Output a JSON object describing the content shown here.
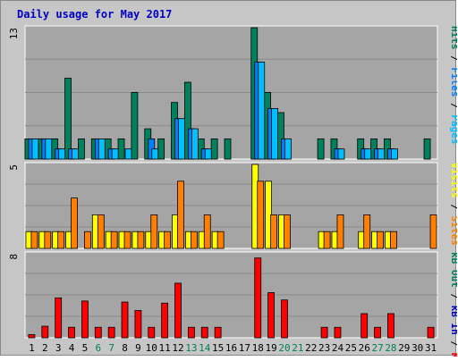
{
  "colors": {
    "background": "#c6c6c6",
    "plot": "#a5a5a5",
    "hits": "#00805c",
    "files": "#0080ff",
    "pages": "#00c0ff",
    "visits": "#ffff00",
    "sites": "#ff8000",
    "kbytes": "#ff0000",
    "title": "#0000c0",
    "weekend": "#00805c"
  },
  "chart_data": {
    "type": "bar",
    "title": "Daily usage for May 2017",
    "x": [
      "1",
      "2",
      "3",
      "4",
      "5",
      "6",
      "7",
      "8",
      "9",
      "10",
      "11",
      "12",
      "13",
      "14",
      "15",
      "16",
      "17",
      "18",
      "19",
      "20",
      "21",
      "22",
      "23",
      "24",
      "25",
      "26",
      "27",
      "28",
      "29",
      "30",
      "31"
    ],
    "weekend_days": [
      "6",
      "7",
      "13",
      "14",
      "20",
      "21",
      "27",
      "28"
    ],
    "panels": [
      {
        "max_label": "13",
        "ylim": [
          0,
          13
        ],
        "series": [
          {
            "name": "Hits",
            "values": [
              2,
              2,
              2,
              8,
              2,
              2,
              2,
              2,
              6.6,
              3,
              2,
              5.6,
              7.6,
              2,
              2,
              2,
              0,
              13,
              6.6,
              4.6,
              0,
              0,
              2,
              2,
              0,
              2,
              2,
              2,
              0,
              0,
              2
            ]
          },
          {
            "name": "Files",
            "values": [
              2,
              2,
              1,
              1,
              0,
              2,
              1,
              0,
              0,
              2,
              0,
              4,
              3,
              1,
              0,
              0,
              0,
              9.6,
              5,
              2,
              0,
              0,
              0,
              1,
              0,
              1,
              1,
              1,
              0,
              0,
              0
            ]
          },
          {
            "name": "Pages",
            "values": [
              2,
              2,
              1,
              1,
              0,
              2,
              1,
              1,
              0,
              1,
              0,
              4,
              3,
              1,
              0,
              0,
              0,
              9.6,
              5,
              2,
              0,
              0,
              0,
              1,
              0,
              1,
              1,
              1,
              0,
              0,
              0
            ]
          }
        ],
        "axis_label_parts": [
          {
            "text": "Pages",
            "color": "#00c0ff"
          },
          {
            "text": " / ",
            "color": "#000000"
          },
          {
            "text": "Files",
            "color": "#0080ff"
          },
          {
            "text": " / ",
            "color": "#000000"
          },
          {
            "text": "Hits",
            "color": "#00805c"
          }
        ]
      },
      {
        "max_label": "5",
        "ylim": [
          0,
          5
        ],
        "series": [
          {
            "name": "Visits",
            "values": [
              1,
              1,
              1,
              1,
              0,
              2,
              1,
              1,
              1,
              1,
              1,
              2,
              1,
              1,
              1,
              0,
              0,
              5,
              4,
              2,
              0,
              0,
              1,
              1,
              0,
              1,
              1,
              1,
              0,
              0,
              0
            ]
          },
          {
            "name": "Sites",
            "values": [
              1,
              1,
              1,
              3,
              1,
              2,
              1,
              1,
              1,
              2,
              1,
              4,
              1,
              2,
              1,
              0,
              0,
              4,
              2,
              2,
              0,
              0,
              1,
              2,
              0,
              2,
              1,
              1,
              0,
              0,
              2
            ]
          }
        ],
        "axis_label_parts": [
          {
            "text": "Sites",
            "color": "#ff8000"
          },
          {
            "text": " / ",
            "color": "#000000"
          },
          {
            "text": "Visits",
            "color": "#ffff00"
          }
        ]
      },
      {
        "max_label": "8",
        "ylim": [
          0,
          8
        ],
        "series": [
          {
            "name": "KBytes",
            "values": [
              0.3,
              1.1,
              3.8,
              1,
              3.5,
              1,
              1,
              3.4,
              2.6,
              1,
              3.3,
              5.2,
              1,
              1,
              1,
              0,
              0,
              7.6,
              4.3,
              3.6,
              0,
              0,
              1,
              1,
              0,
              2.3,
              1,
              2.3,
              0,
              0,
              1
            ]
          }
        ],
        "axis_label_parts": [
          {
            "text": "KB F",
            "color": "#ff0000"
          },
          {
            "text": " / ",
            "color": "#000000"
          },
          {
            "text": "kB In",
            "color": "#0000c0"
          },
          {
            "text": " / ",
            "color": "#000000"
          },
          {
            "text": "kB Out",
            "color": "#00805c"
          }
        ]
      }
    ]
  }
}
